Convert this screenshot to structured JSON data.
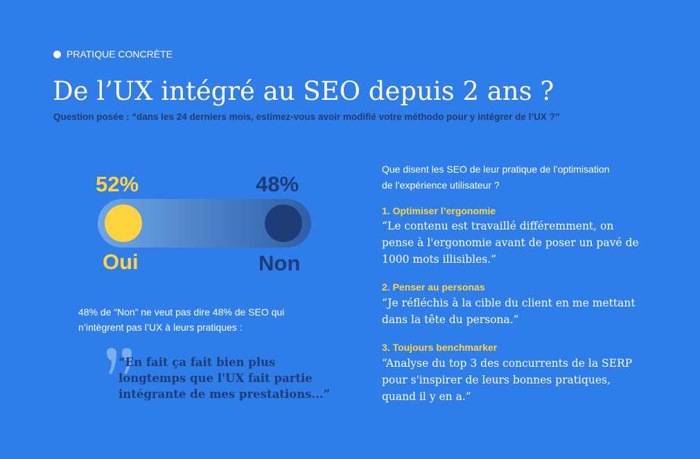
{
  "header": {
    "tag": "PRATIQUE CONCRÈTE",
    "title": "De l’UX intégré au SEO depuis 2 ans ?",
    "subtitle": "Question posée : “dans les 24 derniers mois, estimez-vous avoir modifié votre méthodo pour y intégrer de l’UX ?”"
  },
  "poll": {
    "yes_percent": "52%",
    "yes_label": "Oui",
    "no_percent": "48%",
    "no_label": "Non"
  },
  "note": {
    "lines": [
      "48% de “Non” ne veut pas dire 48% de SEO qui",
      "n’intègrent pas l’UX à leurs pratiques :"
    ]
  },
  "quote": {
    "lines": [
      "“En fait ça fait bien plus",
      "longtemps que l'UX fait partie",
      "intégrante de mes prestations...”"
    ]
  },
  "practices": {
    "intro": [
      "Que disent les SEO de leur pratique de l’optimisation",
      "de l’expérience utilisateur ?"
    ],
    "items": [
      {
        "heading": "1. Optimiser l’ergonomie",
        "lines": [
          "“Le contenu est travaillé différemment, on",
          "pense à l'ergonomie avant de poser un pavé de",
          "1000 mots illisibles.”"
        ]
      },
      {
        "heading": "2. Penser au personas",
        "lines": [
          "“Je réfléchis à la cible du client en me mettant",
          "dans la tête du persona.”"
        ]
      },
      {
        "heading": "3. Toujours benchmarker",
        "lines": [
          "“Analyse du top 3 des concurrents de la SERP",
          "pour s'inspirer de leurs bonnes pratiques,",
          "quand il y en a.”"
        ]
      }
    ]
  }
}
